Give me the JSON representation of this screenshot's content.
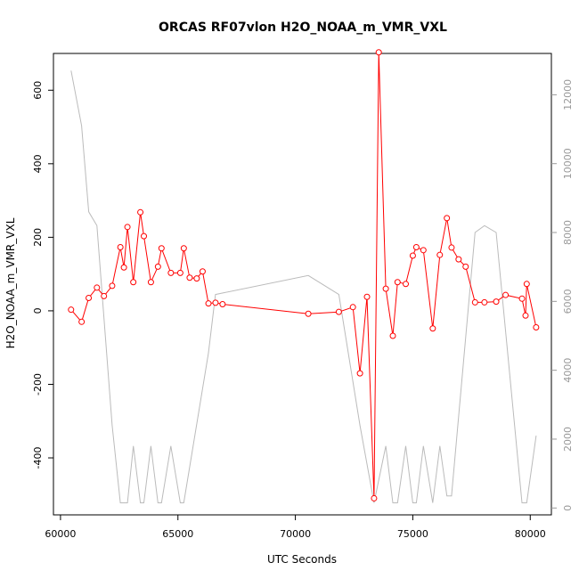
{
  "chart_data": {
    "type": "line",
    "title": "ORCAS RF07vlon H2O_NOAA_m_VMR_VXL",
    "xlabel": "UTC Seconds",
    "ylabel": "H2O_NOAA_m_VMR_VXL",
    "xlim": [
      59700,
      80900
    ],
    "ylim": [
      -555,
      700
    ],
    "y2lim": [
      -200,
      13200
    ],
    "x_ticks": [
      60000,
      65000,
      70000,
      75000,
      80000
    ],
    "y_ticks": [
      -400,
      -200,
      0,
      200,
      400,
      600
    ],
    "y2_ticks": [
      0,
      2000,
      4000,
      6000,
      8000,
      10000,
      12000
    ],
    "grid": false,
    "colors": {
      "primary": "#ff0000",
      "secondary": "#bbbbbb"
    },
    "series": [
      {
        "axis": "left",
        "style": "line+points",
        "color": "#ff0000",
        "x": [
          60450,
          60900,
          61200,
          61550,
          61850,
          62200,
          62550,
          62700,
          62850,
          63100,
          63400,
          63550,
          63850,
          64150,
          64300,
          64700,
          65100,
          65250,
          65500,
          65800,
          66050,
          66300,
          66600,
          66900,
          70550,
          71850,
          72450,
          72750,
          73050,
          73350,
          73550,
          73850,
          74150,
          74350,
          74700,
          75000,
          75150,
          75450,
          75850,
          76150,
          76450,
          76650,
          76950,
          77250,
          77650,
          78050,
          78550,
          78950,
          79650,
          79800,
          79850,
          80250
        ],
        "y": [
          3,
          -30,
          35,
          63,
          40,
          68,
          173,
          118,
          228,
          78,
          268,
          203,
          78,
          120,
          170,
          103,
          103,
          170,
          90,
          88,
          107,
          20,
          22,
          18,
          -8,
          -3,
          10,
          -170,
          38,
          -510,
          703,
          60,
          -68,
          78,
          73,
          150,
          173,
          165,
          -48,
          152,
          252,
          172,
          140,
          120,
          23,
          23,
          25,
          43,
          33,
          -13,
          73,
          -45
        ]
      },
      {
        "axis": "right",
        "style": "line",
        "color": "#bbbbbb",
        "x": [
          60450,
          60900,
          61200,
          61550,
          62200,
          62550,
          62850,
          63100,
          63400,
          63550,
          63850,
          64150,
          64300,
          64700,
          65100,
          65250,
          66300,
          66600,
          70550,
          71850,
          72750,
          73350,
          73850,
          74150,
          74350,
          74700,
          75000,
          75150,
          75450,
          75850,
          76150,
          76450,
          76650,
          77650,
          78050,
          78550,
          79650,
          79850,
          80250
        ],
        "y": [
          12700,
          11100,
          8600,
          8200,
          2400,
          150,
          150,
          1800,
          150,
          150,
          1800,
          150,
          150,
          1800,
          150,
          150,
          4500,
          6200,
          6750,
          6200,
          2400,
          150,
          1800,
          150,
          150,
          1800,
          150,
          150,
          1800,
          150,
          1800,
          350,
          350,
          8000,
          8200,
          8000,
          150,
          150,
          2100
        ]
      }
    ]
  }
}
